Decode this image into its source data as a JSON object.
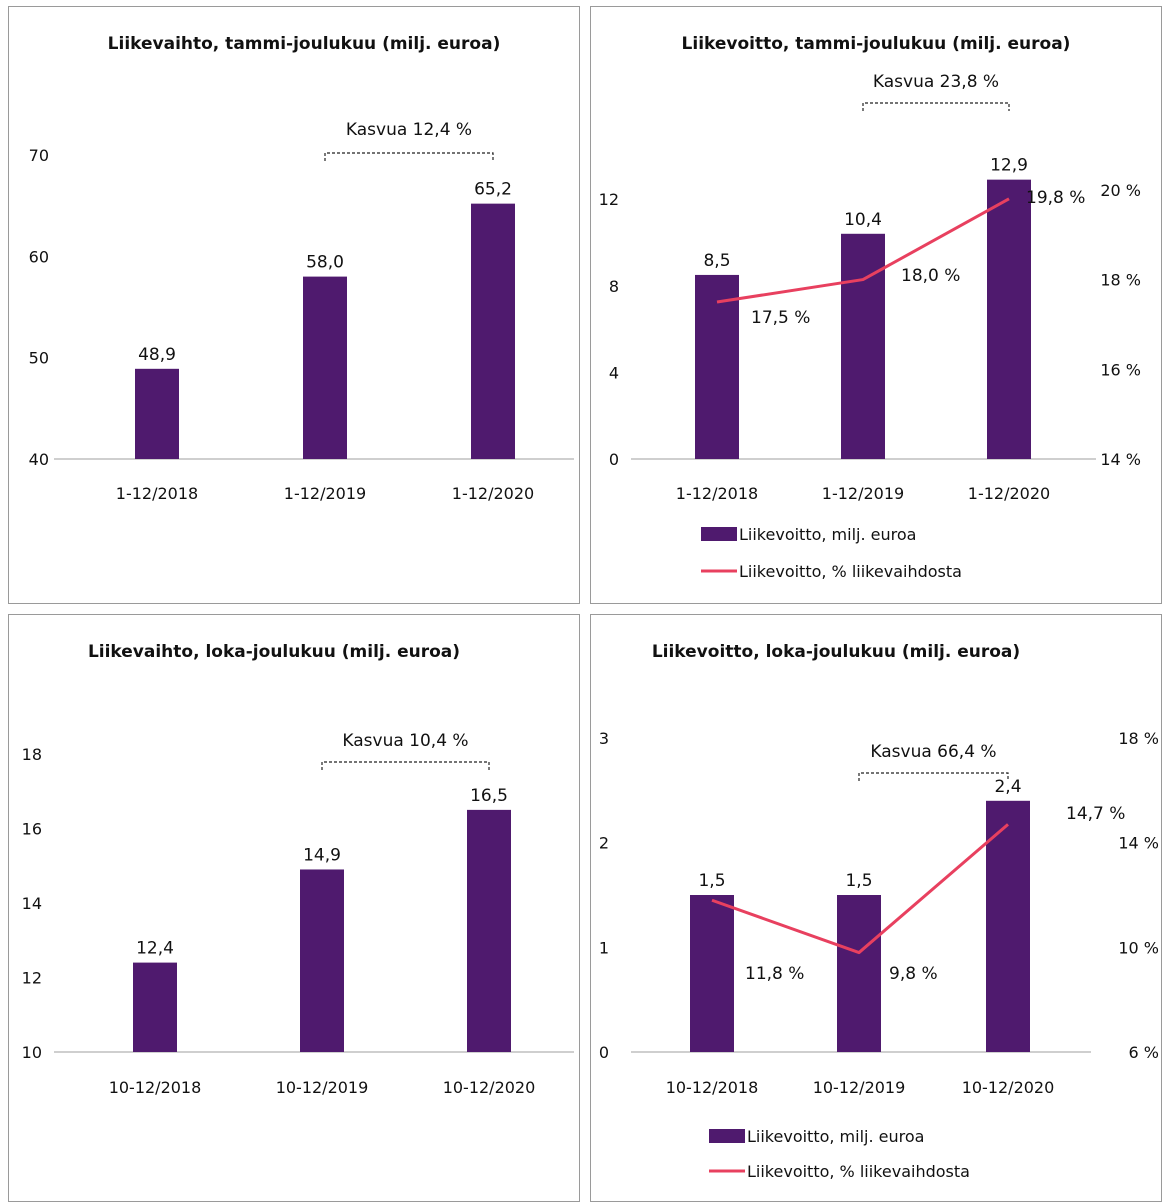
{
  "colors": {
    "bar": "#4f1a6e",
    "line": "#e8405f",
    "axis": "#bfbfbf",
    "bracket": "#222222"
  },
  "chart_data": [
    {
      "type": "bar",
      "title": "Liikevaihto, tammi-joulukuu (milj. euroa)",
      "categories": [
        "1-12/2018",
        "1-12/2019",
        "1-12/2020"
      ],
      "values": [
        48.9,
        58.0,
        65.2
      ],
      "value_labels": [
        "48,9",
        "58,0",
        "65,2"
      ],
      "ylim": [
        40,
        70
      ],
      "yticks": [
        40,
        50,
        60,
        70
      ],
      "ytick_labels": [
        "40",
        "50",
        "60",
        "70"
      ],
      "grid": false,
      "annotation": {
        "text": "Kasvua 12,4 %",
        "from": 1,
        "to": 2
      }
    },
    {
      "type": "bar",
      "title": "Liikevoitto, tammi-joulukuu (milj. euroa)",
      "categories": [
        "1-12/2018",
        "1-12/2019",
        "1-12/2020"
      ],
      "values": [
        8.5,
        10.4,
        12.9
      ],
      "value_labels": [
        "8,5",
        "10,4",
        "12,9"
      ],
      "ylim": [
        0,
        14.5
      ],
      "yticks": [
        0,
        4,
        8,
        12
      ],
      "ytick_labels": [
        "0",
        "4",
        "8",
        "12"
      ],
      "line": {
        "values": [
          17.5,
          18.0,
          19.8
        ],
        "value_labels": [
          "17,5 %",
          "18,0 %",
          "19,8 %"
        ],
        "ylim": [
          14,
          21
        ],
        "yticks": [
          14,
          16,
          18,
          20
        ],
        "ytick_labels": [
          "14 %",
          "16 %",
          "18 %",
          "20 %"
        ]
      },
      "grid": false,
      "annotation": {
        "text": "Kasvua 23,8 %",
        "from": 1,
        "to": 2
      },
      "legend": [
        "Liikevoitto, milj. euroa",
        "Liikevoitto, % liikevaihdosta"
      ]
    },
    {
      "type": "bar",
      "title": "Liikevaihto, loka-joulukuu (milj. euroa)",
      "categories": [
        "10-12/2018",
        "10-12/2019",
        "10-12/2020"
      ],
      "values": [
        12.4,
        14.9,
        16.5
      ],
      "value_labels": [
        "12,4",
        "14,9",
        "16,5"
      ],
      "ylim": [
        10,
        18
      ],
      "yticks": [
        10,
        12,
        14,
        16,
        18
      ],
      "ytick_labels": [
        "10",
        "12",
        "14",
        "16",
        "18"
      ],
      "grid": false,
      "annotation": {
        "text": "Kasvua 10,4 %",
        "from": 1,
        "to": 2
      }
    },
    {
      "type": "bar",
      "title": "Liikevoitto, loka-joulukuu (milj. euroa)",
      "categories": [
        "10-12/2018",
        "10-12/2019",
        "10-12/2020"
      ],
      "values": [
        1.5,
        1.5,
        2.4
      ],
      "value_labels": [
        "1,5",
        "1,5",
        "2,4"
      ],
      "ylim": [
        0,
        3
      ],
      "yticks": [
        0,
        1,
        2,
        3
      ],
      "ytick_labels": [
        "0",
        "1",
        "2",
        "3"
      ],
      "line": {
        "values": [
          11.8,
          9.8,
          14.7
        ],
        "value_labels": [
          "11,8 %",
          "9,8 %",
          "14,7 %"
        ],
        "ylim": [
          6,
          18
        ],
        "yticks": [
          6,
          10,
          14,
          18
        ],
        "ytick_labels": [
          "6 %",
          "10 %",
          "14 %",
          "18 %"
        ]
      },
      "grid": false,
      "annotation": {
        "text": "Kasvua 66,4 %",
        "from": 1,
        "to": 2
      },
      "legend": [
        "Liikevoitto, milj. euroa",
        "Liikevoitto, % liikevaihdosta"
      ]
    }
  ]
}
